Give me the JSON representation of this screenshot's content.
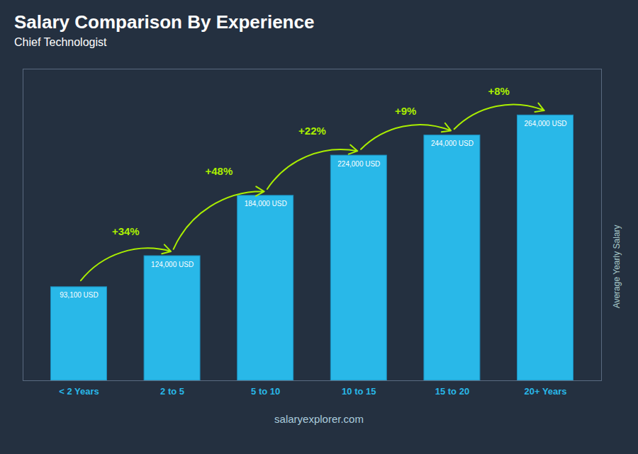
{
  "chart_data": {
    "type": "bar",
    "title": "Salary Comparison By Experience",
    "subtitle": "Chief Technologist",
    "ylabel": "Average Yearly Salary",
    "categories": [
      "< 2 Years",
      "2 to 5",
      "5 to 10",
      "10 to 15",
      "15 to 20",
      "20+ Years"
    ],
    "values": [
      93100,
      124000,
      184000,
      224000,
      244000,
      264000
    ],
    "value_labels": [
      "93,100 USD",
      "124,000 USD",
      "184,000 USD",
      "224,000 USD",
      "244,000 USD",
      "264,000 USD"
    ],
    "data_labels": true,
    "annotations": [
      "+34%",
      "+48%",
      "+22%",
      "+9%",
      "+8%"
    ],
    "caption": "salaryexplorer.com",
    "color": "#29b8e8",
    "ylim": [
      0,
      310000
    ],
    "grid": false,
    "tick_labels": "x"
  }
}
